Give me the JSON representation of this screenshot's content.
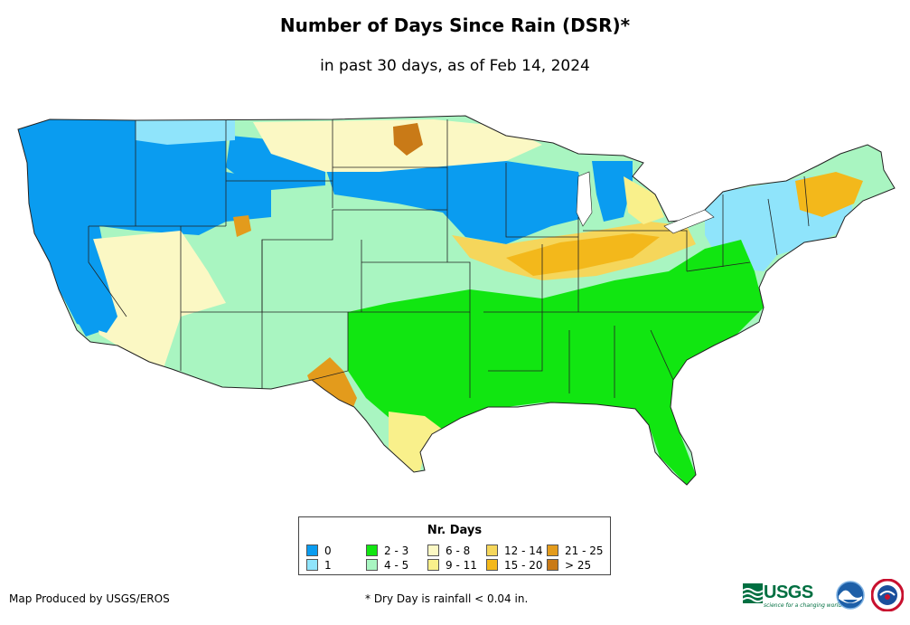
{
  "title": "Number of Days Since Rain (DSR)*",
  "subtitle": "in past 30 days, as of Feb 14, 2024",
  "legend": {
    "title": "Nr. Days",
    "items": [
      {
        "label": "0",
        "color": "#0a9cf0"
      },
      {
        "label": "1",
        "color": "#8fe4fb"
      },
      {
        "label": "2 - 3",
        "color": "#11e611"
      },
      {
        "label": "4 - 5",
        "color": "#a9f5c1"
      },
      {
        "label": "6 - 8",
        "color": "#fbf8c4"
      },
      {
        "label": "9 - 11",
        "color": "#f9f08b"
      },
      {
        "label": "12 - 14",
        "color": "#f5d65b"
      },
      {
        "label": "15 - 20",
        "color": "#f3b81b"
      },
      {
        "label": "21 - 25",
        "color": "#e39b1c"
      },
      {
        "label": "> 25",
        "color": "#c97a17"
      }
    ]
  },
  "credit": "Map Produced by USGS/EROS",
  "footnote": "* Dry Day is rainfall < 0.04 in.",
  "logos": {
    "usgs": "USGS",
    "usgs_tagline": "science for a changing world"
  }
}
